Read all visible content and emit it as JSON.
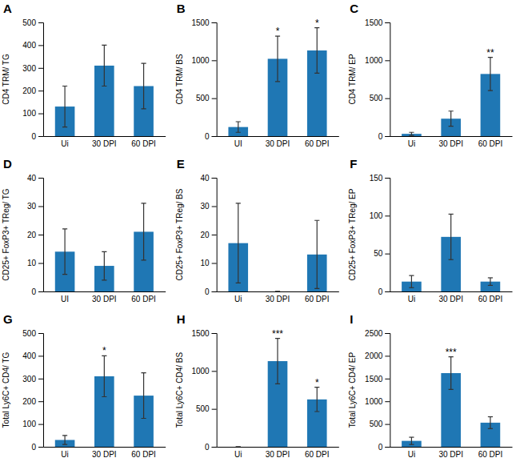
{
  "chart_data": [
    {
      "type": "bar",
      "title": "A",
      "ylabel": "CD4 TRM/ TG",
      "categories": [
        "Ui",
        "30 DPI",
        "60 DPI"
      ],
      "values": [
        130,
        310,
        220
      ],
      "errors": [
        90,
        90,
        100
      ],
      "ylim": [
        0,
        500
      ],
      "yticks": [
        0,
        100,
        200,
        300,
        400,
        500
      ]
    },
    {
      "type": "bar",
      "title": "B",
      "ylabel": "CD4 TRM/ BS",
      "categories": [
        "UI",
        "30 DPI",
        "60 DPI"
      ],
      "values": [
        120,
        1020,
        1130
      ],
      "errors": [
        70,
        300,
        300
      ],
      "ylim": [
        0,
        1500
      ],
      "yticks": [
        0,
        500,
        1000,
        1500
      ],
      "annotations": [
        {
          "x": "30 DPI",
          "text": "*"
        },
        {
          "x": "60 DPI",
          "text": "*"
        }
      ]
    },
    {
      "type": "bar",
      "title": "C",
      "ylabel": "CD4 TRM/ EP",
      "categories": [
        "Ui",
        "30 DPI",
        "60 DPI"
      ],
      "values": [
        30,
        230,
        820
      ],
      "errors": [
        20,
        100,
        220
      ],
      "ylim": [
        0,
        1500
      ],
      "yticks": [
        0,
        500,
        1000,
        1500
      ],
      "annotations": [
        {
          "x": "60 DPI",
          "text": "**"
        }
      ]
    },
    {
      "type": "bar",
      "title": "D",
      "ylabel": "CD25+ FoxP3+ TReg/ TG",
      "categories": [
        "UI",
        "30 DPI",
        "60 DPI"
      ],
      "values": [
        14,
        9,
        21
      ],
      "errors": [
        8,
        5,
        10
      ],
      "ylim": [
        0,
        40
      ],
      "yticks": [
        0,
        10,
        20,
        30,
        40
      ]
    },
    {
      "type": "bar",
      "title": "E",
      "ylabel": "CD25+ FoxP3+ TReg/ BS",
      "categories": [
        "Ui",
        "30 DPI",
        "60 DPI"
      ],
      "values": [
        17,
        0,
        13
      ],
      "errors": [
        14,
        0,
        12
      ],
      "ylim": [
        0,
        40
      ],
      "yticks": [
        0,
        10,
        20,
        30,
        40
      ]
    },
    {
      "type": "bar",
      "title": "F",
      "ylabel": "CD25+ FoxP3+ TReg/ EP",
      "categories": [
        "Ui",
        "30 DPI",
        "60 DPI"
      ],
      "values": [
        13,
        72,
        13
      ],
      "errors": [
        8,
        30,
        5
      ],
      "ylim": [
        0,
        150
      ],
      "yticks": [
        0,
        50,
        100,
        150
      ]
    },
    {
      "type": "bar",
      "title": "G",
      "ylabel": "Total Ly6C+ CD4/ TG",
      "categories": [
        "Ui",
        "30 DPI",
        "60 DPI"
      ],
      "values": [
        30,
        310,
        225
      ],
      "errors": [
        20,
        90,
        100
      ],
      "ylim": [
        0,
        500
      ],
      "yticks": [
        0,
        100,
        200,
        300,
        400,
        500
      ],
      "annotations": [
        {
          "x": "30 DPI",
          "text": "*"
        }
      ]
    },
    {
      "type": "bar",
      "title": "H",
      "ylabel": "Total Ly6C+ CD4/ BS",
      "categories": [
        "Ui",
        "30 DPI",
        "60 DPI"
      ],
      "values": [
        0,
        1130,
        625
      ],
      "errors": [
        0,
        300,
        160
      ],
      "ylim": [
        0,
        1500
      ],
      "yticks": [
        0,
        500,
        1000,
        1500
      ],
      "annotations": [
        {
          "x": "30 DPI",
          "text": "***"
        },
        {
          "x": "60 DPI",
          "text": "*"
        }
      ]
    },
    {
      "type": "bar",
      "title": "I",
      "ylabel": "Total Ly6C+ CD4/ EP",
      "categories": [
        "Ui",
        "30 DPI",
        "60 DPI"
      ],
      "values": [
        130,
        1620,
        530
      ],
      "errors": [
        80,
        360,
        130
      ],
      "ylim": [
        0,
        2500
      ],
      "yticks": [
        0,
        500,
        1000,
        1500,
        2000,
        2500
      ],
      "annotations": [
        {
          "x": "30 DPI",
          "text": "***"
        }
      ]
    }
  ]
}
